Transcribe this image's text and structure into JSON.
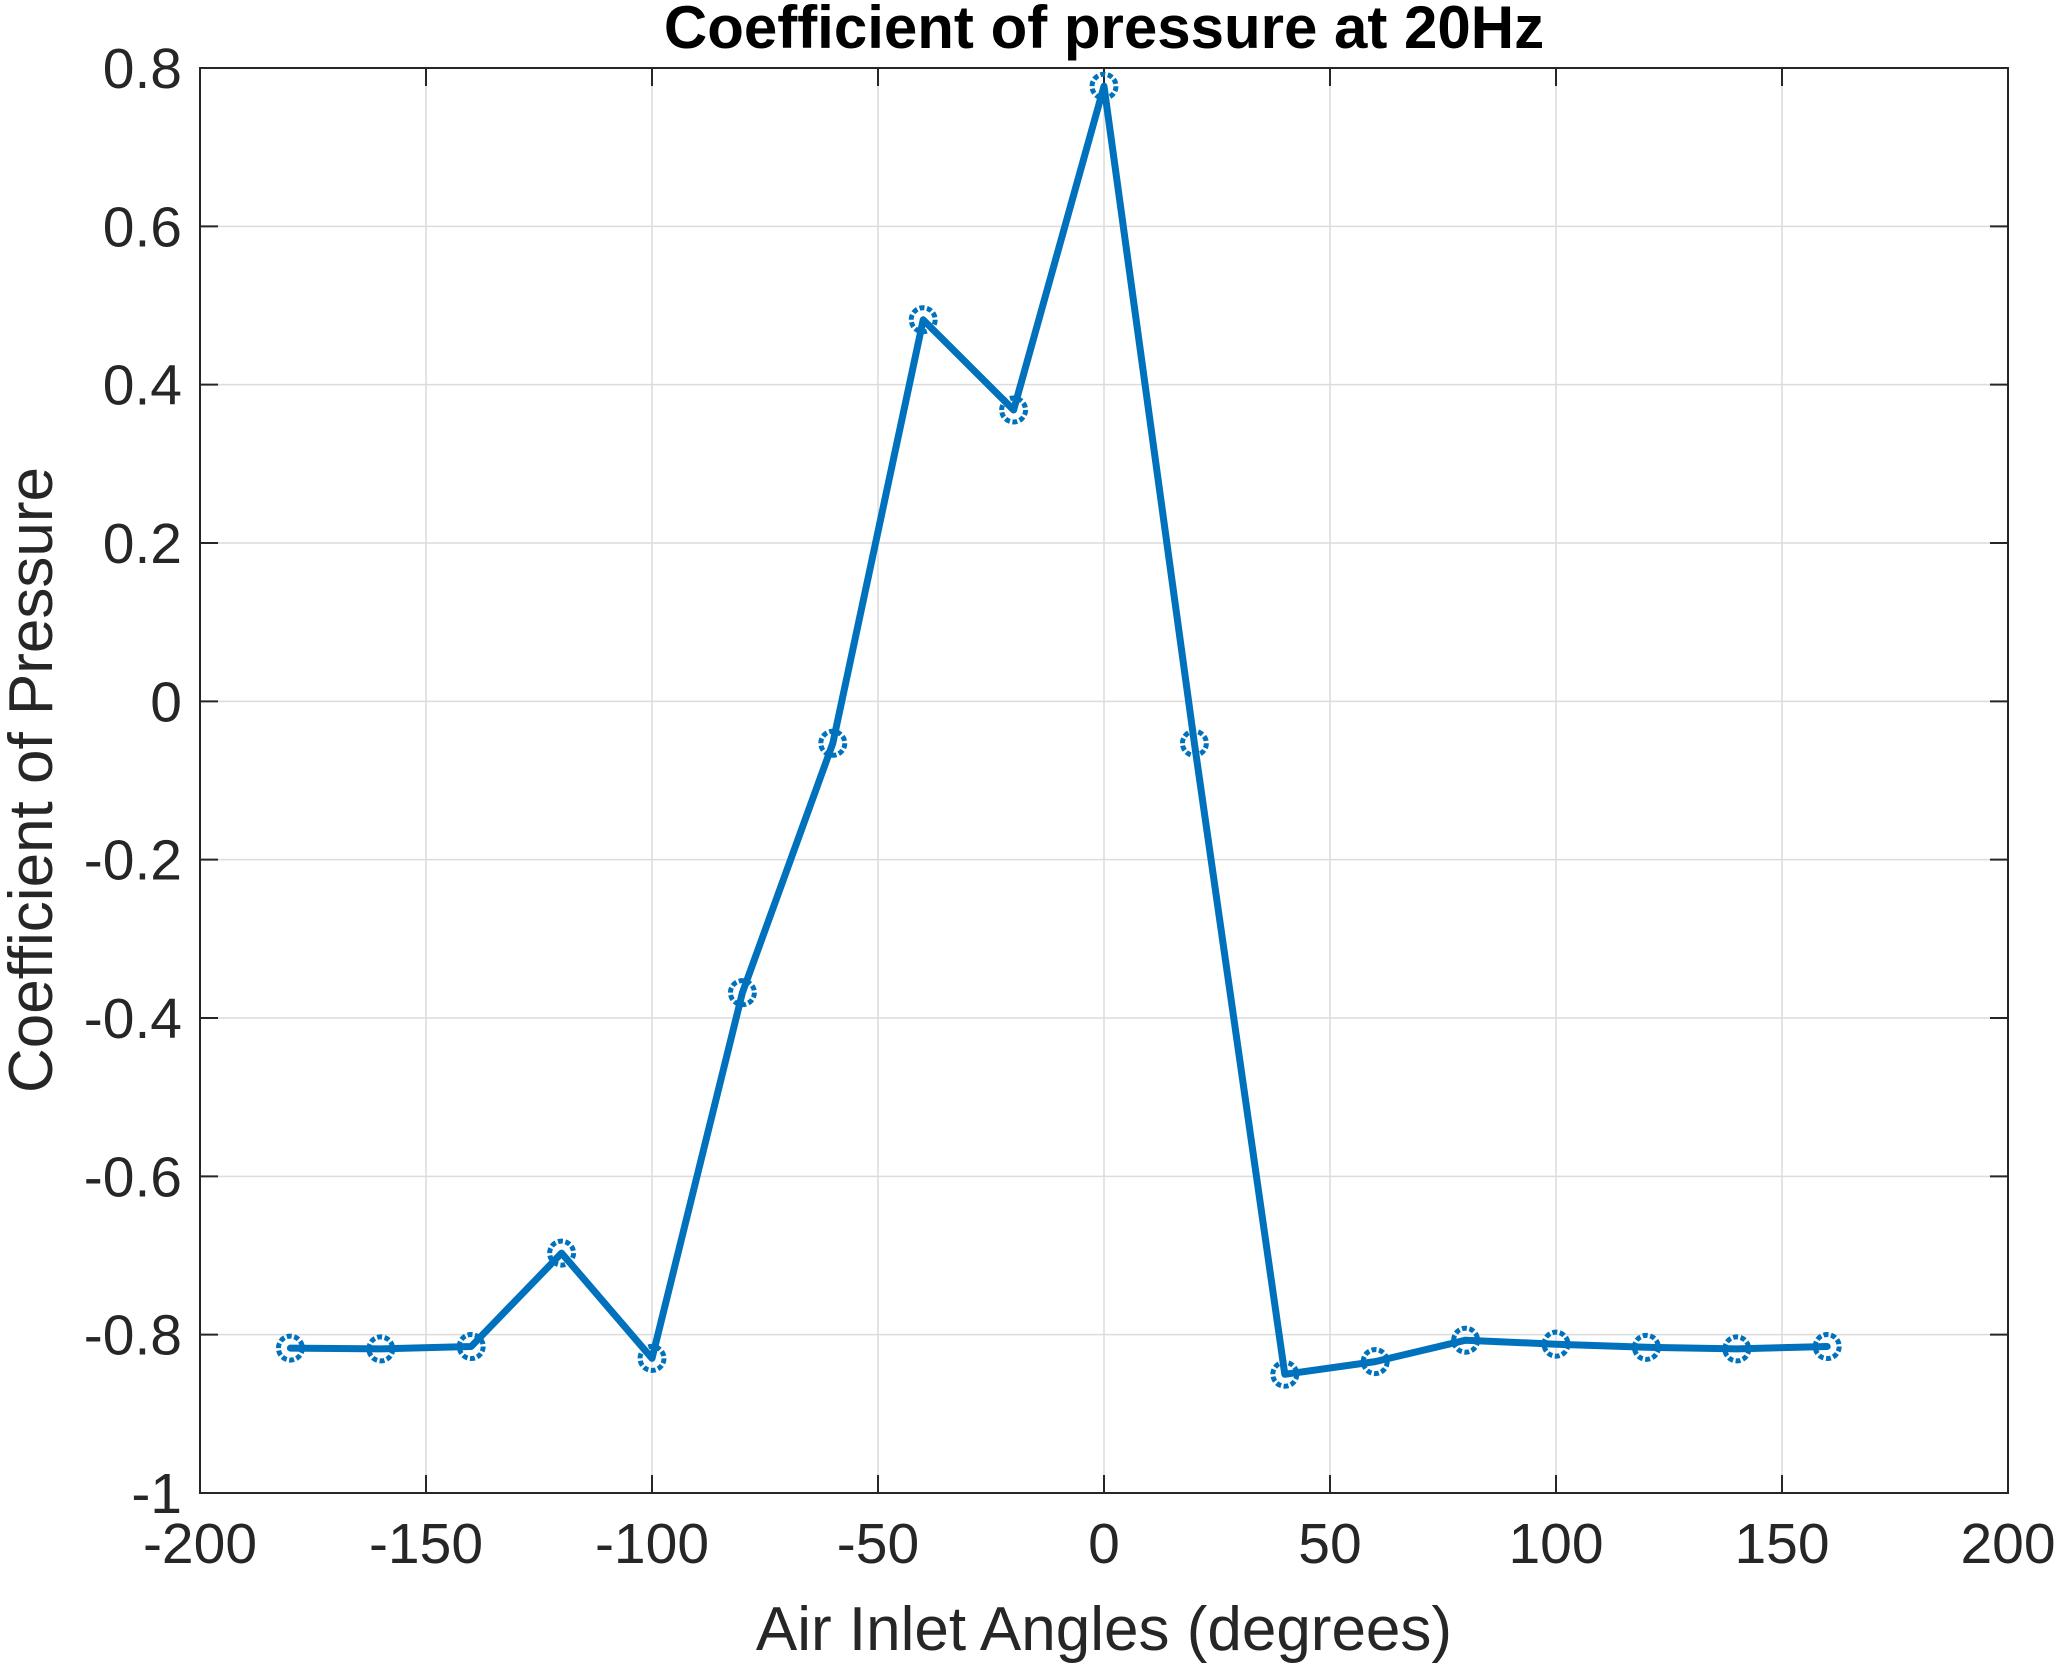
{
  "chart_data": {
    "type": "line",
    "title": "Coefficient of pressure at 20Hz",
    "xlabel": "Air Inlet Angles (degrees)",
    "ylabel": "Coefficient of Pressure",
    "xlim": [
      -200,
      200
    ],
    "ylim": [
      -1,
      0.8
    ],
    "xticks": [
      -200,
      -150,
      -100,
      -50,
      0,
      50,
      100,
      150,
      200
    ],
    "yticks": [
      -1,
      -0.8,
      -0.6,
      -0.4,
      -0.2,
      0,
      0.2,
      0.4,
      0.6,
      0.8
    ],
    "xtick_labels": [
      "-200",
      "-150",
      "-100",
      "-50",
      "0",
      "50",
      "100",
      "150",
      "200"
    ],
    "ytick_labels": [
      "-1",
      "-0.8",
      "-0.6",
      "-0.4",
      "-0.2",
      "0",
      "0.2",
      "0.4",
      "0.6",
      "0.8"
    ],
    "grid": true,
    "marker": "circle",
    "series": [
      {
        "color": "#0072bd",
        "x": [
          -180,
          -160,
          -140,
          -120,
          -100,
          -80,
          -60,
          -40,
          -20,
          0,
          20,
          40,
          60,
          80,
          100,
          120,
          140,
          160
        ],
        "y": [
          -0.817,
          -0.818,
          -0.815,
          -0.697,
          -0.83,
          -0.368,
          -0.053,
          0.482,
          0.368,
          0.777,
          -0.053,
          -0.85,
          -0.834,
          -0.807,
          -0.812,
          -0.816,
          -0.818,
          -0.815
        ]
      }
    ]
  }
}
